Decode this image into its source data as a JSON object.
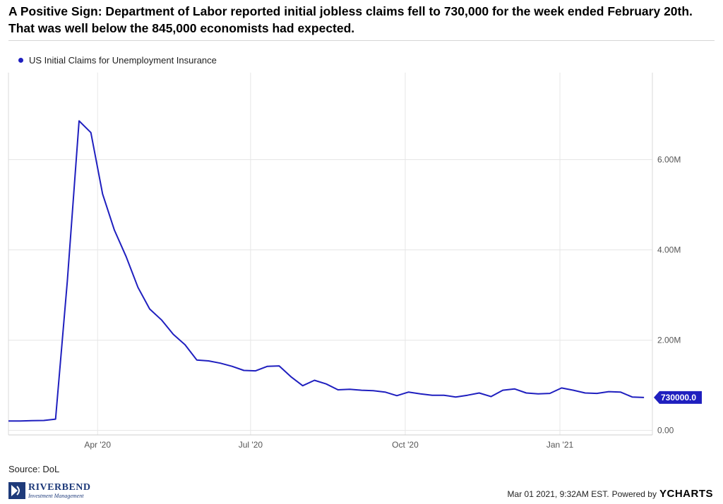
{
  "title": "A Positive Sign: Department of Labor reported initial jobless claims fell to 730,000 for the week ended February 20th.  That was well below the 845,000 economists had expected.",
  "source_text": "Source: DoL",
  "logo": {
    "name": "RIVERBEND",
    "sub": "Investment Management"
  },
  "footer": {
    "timestamp": "Mar 01 2021, 9:32AM EST.",
    "powered_by": "Powered by",
    "brand": "YCHARTS"
  },
  "colors": {
    "series": "#1f1fbf",
    "grid": "#e6e6e6",
    "axis_text": "#555555",
    "flag_text": "#ffffff"
  },
  "chart_data": {
    "type": "line",
    "title": "",
    "xlabel": "",
    "ylabel": "",
    "ylim": [
      -100000,
      7930000
    ],
    "y_ticks": [
      {
        "value": 0,
        "label": "0.00"
      },
      {
        "value": 2000000,
        "label": "2.00M"
      },
      {
        "value": 4000000,
        "label": "4.00M"
      },
      {
        "value": 6000000,
        "label": "6.00M"
      }
    ],
    "x_range": [
      "2020-02-08",
      "2021-02-25"
    ],
    "x_ticks": [
      {
        "date": "2020-04-01",
        "label": "Apr '20"
      },
      {
        "date": "2020-07-01",
        "label": "Jul '20"
      },
      {
        "date": "2020-10-01",
        "label": "Oct '20"
      },
      {
        "date": "2021-01-01",
        "label": "Jan '21"
      }
    ],
    "grid": true,
    "legend_position": "top-left",
    "last_value_label": "730000.0",
    "series": [
      {
        "name": "US Initial Claims for Unemployment Insurance",
        "x": [
          "2020-02-08",
          "2020-02-15",
          "2020-02-22",
          "2020-02-29",
          "2020-03-07",
          "2020-03-14",
          "2020-03-21",
          "2020-03-28",
          "2020-04-04",
          "2020-04-11",
          "2020-04-18",
          "2020-04-25",
          "2020-05-02",
          "2020-05-09",
          "2020-05-16",
          "2020-05-23",
          "2020-05-30",
          "2020-06-06",
          "2020-06-13",
          "2020-06-20",
          "2020-06-27",
          "2020-07-04",
          "2020-07-11",
          "2020-07-18",
          "2020-07-25",
          "2020-08-01",
          "2020-08-08",
          "2020-08-15",
          "2020-08-22",
          "2020-08-29",
          "2020-09-05",
          "2020-09-12",
          "2020-09-19",
          "2020-09-26",
          "2020-10-03",
          "2020-10-10",
          "2020-10-17",
          "2020-10-24",
          "2020-10-31",
          "2020-11-07",
          "2020-11-14",
          "2020-11-21",
          "2020-11-28",
          "2020-12-05",
          "2020-12-12",
          "2020-12-19",
          "2020-12-26",
          "2021-01-02",
          "2021-01-09",
          "2021-01-16",
          "2021-01-23",
          "2021-01-30",
          "2021-02-06",
          "2021-02-13",
          "2021-02-20"
        ],
        "y": [
          210000,
          210000,
          215000,
          220000,
          250000,
          3300000,
          6860000,
          6600000,
          5240000,
          4440000,
          3850000,
          3170000,
          2690000,
          2450000,
          2130000,
          1900000,
          1560000,
          1540000,
          1490000,
          1420000,
          1330000,
          1320000,
          1420000,
          1430000,
          1190000,
          990000,
          1110000,
          1030000,
          900000,
          910000,
          890000,
          880000,
          850000,
          770000,
          850000,
          810000,
          780000,
          780000,
          740000,
          780000,
          830000,
          750000,
          890000,
          920000,
          830000,
          810000,
          820000,
          940000,
          890000,
          830000,
          820000,
          860000,
          850000,
          740000,
          730000
        ]
      }
    ]
  }
}
